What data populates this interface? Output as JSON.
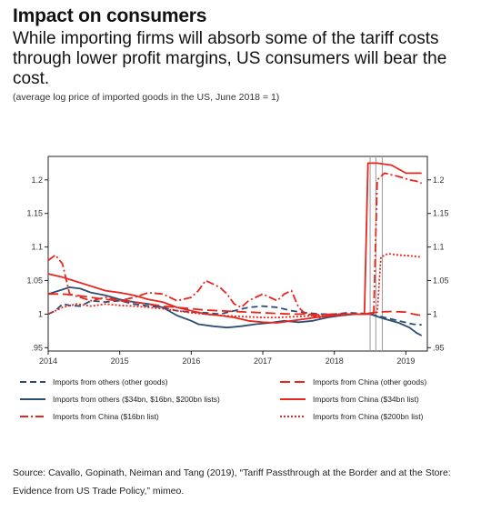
{
  "header": {
    "title": "Impact on consumers",
    "subtitle": "While importing firms will absorb some of the tariff costs through lower profit margins, US consumers will bear the cost.",
    "note": "(average log price of imported goods in the US, June 2018 = 1)"
  },
  "source": "Source: Cavallo, Gopinath, Neiman and Tang (2019), “Tariff Passthrough at the Border and at the Store: Evidence from US Trade Policy,” mimeo.",
  "colors": {
    "navy": "#2e4d73",
    "red": "#e8261e"
  },
  "chart_data": {
    "type": "line",
    "xlim": [
      2014.0,
      2019.3
    ],
    "ylim": [
      0.945,
      1.235
    ],
    "x_ticks": [
      {
        "value": 2014,
        "label": "2014"
      },
      {
        "value": 2015,
        "label": "2015"
      },
      {
        "value": 2016,
        "label": "2016"
      },
      {
        "value": 2017,
        "label": "2017"
      },
      {
        "value": 2018,
        "label": "2018"
      },
      {
        "value": 2019,
        "label": "2019"
      }
    ],
    "y_ticks": [
      {
        "value": 0.95,
        "label": ".95"
      },
      {
        "value": 1.0,
        "label": "1"
      },
      {
        "value": 1.05,
        "label": "1.05"
      },
      {
        "value": 1.1,
        "label": "1.1"
      },
      {
        "value": 1.15,
        "label": "1.15"
      },
      {
        "value": 1.2,
        "label": "1.2"
      }
    ],
    "grid": false,
    "vertical_markers": [
      2018.5,
      2018.58,
      2018.67
    ],
    "legend_position": "bottom",
    "series": [
      {
        "name": "Imports from others (other goods)",
        "color": "#2e4d73",
        "dash": "7,4",
        "points": [
          [
            2014.0,
            1.0
          ],
          [
            2014.1,
            1.005
          ],
          [
            2014.2,
            1.015
          ],
          [
            2014.3,
            1.013
          ],
          [
            2014.45,
            1.012
          ],
          [
            2014.6,
            1.02
          ],
          [
            2014.8,
            1.018
          ],
          [
            2015.0,
            1.02
          ],
          [
            2015.2,
            1.015
          ],
          [
            2015.4,
            1.012
          ],
          [
            2015.6,
            1.01
          ],
          [
            2015.8,
            1.005
          ],
          [
            2016.0,
            1.003
          ],
          [
            2016.2,
            1.002
          ],
          [
            2016.4,
            1.0
          ],
          [
            2016.6,
            1.005
          ],
          [
            2016.8,
            1.01
          ],
          [
            2017.0,
            1.012
          ],
          [
            2017.2,
            1.01
          ],
          [
            2017.4,
            1.005
          ],
          [
            2017.6,
            1.002
          ],
          [
            2017.8,
            1.0
          ],
          [
            2018.0,
            1.0
          ],
          [
            2018.2,
            1.002
          ],
          [
            2018.4,
            1.001
          ],
          [
            2018.5,
            1.0
          ],
          [
            2018.7,
            0.995
          ],
          [
            2018.9,
            0.99
          ],
          [
            2019.1,
            0.985
          ],
          [
            2019.22,
            0.984
          ]
        ]
      },
      {
        "name": "Imports from others ($34bn, $16bn, $200bn lists)",
        "color": "#2e4d73",
        "dash": "",
        "points": [
          [
            2014.0,
            1.03
          ],
          [
            2014.15,
            1.035
          ],
          [
            2014.3,
            1.04
          ],
          [
            2014.45,
            1.038
          ],
          [
            2014.6,
            1.032
          ],
          [
            2014.8,
            1.028
          ],
          [
            2015.0,
            1.022
          ],
          [
            2015.2,
            1.018
          ],
          [
            2015.4,
            1.015
          ],
          [
            2015.6,
            1.01
          ],
          [
            2015.8,
            0.998
          ],
          [
            2016.0,
            0.99
          ],
          [
            2016.1,
            0.985
          ],
          [
            2016.3,
            0.982
          ],
          [
            2016.5,
            0.98
          ],
          [
            2016.7,
            0.982
          ],
          [
            2016.9,
            0.985
          ],
          [
            2017.1,
            0.987
          ],
          [
            2017.3,
            0.99
          ],
          [
            2017.5,
            0.988
          ],
          [
            2017.7,
            0.99
          ],
          [
            2017.9,
            0.995
          ],
          [
            2018.1,
            0.998
          ],
          [
            2018.3,
            1.0
          ],
          [
            2018.5,
            1.0
          ],
          [
            2018.7,
            0.993
          ],
          [
            2018.9,
            0.987
          ],
          [
            2019.05,
            0.98
          ],
          [
            2019.15,
            0.972
          ],
          [
            2019.22,
            0.968
          ]
        ]
      },
      {
        "name": "Imports from China ($16bn list)",
        "color": "#e8261e",
        "dash": "9,3,2,3",
        "points": [
          [
            2014.0,
            1.08
          ],
          [
            2014.1,
            1.088
          ],
          [
            2014.2,
            1.075
          ],
          [
            2014.3,
            1.03
          ],
          [
            2014.45,
            1.025
          ],
          [
            2014.6,
            1.02
          ],
          [
            2014.8,
            1.025
          ],
          [
            2015.0,
            1.02
          ],
          [
            2015.2,
            1.025
          ],
          [
            2015.4,
            1.032
          ],
          [
            2015.6,
            1.03
          ],
          [
            2015.8,
            1.02
          ],
          [
            2016.0,
            1.025
          ],
          [
            2016.1,
            1.035
          ],
          [
            2016.2,
            1.05
          ],
          [
            2016.3,
            1.045
          ],
          [
            2016.4,
            1.04
          ],
          [
            2016.5,
            1.03
          ],
          [
            2016.6,
            1.015
          ],
          [
            2016.7,
            1.01
          ],
          [
            2016.8,
            1.02
          ],
          [
            2016.9,
            1.025
          ],
          [
            2017.0,
            1.03
          ],
          [
            2017.1,
            1.025
          ],
          [
            2017.2,
            1.02
          ],
          [
            2017.3,
            1.03
          ],
          [
            2017.4,
            1.035
          ],
          [
            2017.5,
            1.01
          ],
          [
            2017.6,
            1.0
          ],
          [
            2017.8,
            0.995
          ],
          [
            2018.0,
            0.998
          ],
          [
            2018.2,
            1.0
          ],
          [
            2018.4,
            1.0
          ],
          [
            2018.55,
            1.0
          ],
          [
            2018.6,
            1.2
          ],
          [
            2018.7,
            1.21
          ],
          [
            2018.9,
            1.205
          ],
          [
            2019.05,
            1.2
          ],
          [
            2019.15,
            1.198
          ],
          [
            2019.22,
            1.195
          ]
        ]
      },
      {
        "name": "Imports from China (other goods)",
        "color": "#e8261e",
        "dash": "11,5",
        "points": [
          [
            2014.0,
            1.03
          ],
          [
            2014.2,
            1.03
          ],
          [
            2014.4,
            1.028
          ],
          [
            2014.6,
            1.025
          ],
          [
            2014.8,
            1.022
          ],
          [
            2015.0,
            1.02
          ],
          [
            2015.2,
            1.018
          ],
          [
            2015.4,
            1.015
          ],
          [
            2015.6,
            1.012
          ],
          [
            2015.8,
            1.01
          ],
          [
            2016.0,
            1.008
          ],
          [
            2016.2,
            1.006
          ],
          [
            2016.4,
            1.005
          ],
          [
            2016.6,
            1.004
          ],
          [
            2016.8,
            1.003
          ],
          [
            2017.0,
            1.002
          ],
          [
            2017.2,
            1.001
          ],
          [
            2017.4,
            1.0
          ],
          [
            2017.6,
            1.0
          ],
          [
            2017.8,
            0.999
          ],
          [
            2018.0,
            1.0
          ],
          [
            2018.2,
            1.0
          ],
          [
            2018.4,
            1.0
          ],
          [
            2018.6,
            1.003
          ],
          [
            2018.8,
            1.004
          ],
          [
            2019.0,
            1.003
          ],
          [
            2019.1,
            1.0
          ],
          [
            2019.22,
            0.998
          ]
        ]
      },
      {
        "name": "Imports from China ($34bn list)",
        "color": "#e8261e",
        "dash": "",
        "points": [
          [
            2014.0,
            1.06
          ],
          [
            2014.2,
            1.055
          ],
          [
            2014.35,
            1.05
          ],
          [
            2014.5,
            1.045
          ],
          [
            2014.65,
            1.04
          ],
          [
            2014.8,
            1.035
          ],
          [
            2015.0,
            1.032
          ],
          [
            2015.2,
            1.028
          ],
          [
            2015.4,
            1.022
          ],
          [
            2015.6,
            1.018
          ],
          [
            2015.8,
            1.01
          ],
          [
            2016.0,
            1.005
          ],
          [
            2016.2,
            1.0
          ],
          [
            2016.4,
            0.998
          ],
          [
            2016.6,
            0.995
          ],
          [
            2016.8,
            0.99
          ],
          [
            2017.0,
            0.988
          ],
          [
            2017.2,
            0.987
          ],
          [
            2017.4,
            0.99
          ],
          [
            2017.6,
            0.993
          ],
          [
            2017.8,
            0.996
          ],
          [
            2018.0,
            0.998
          ],
          [
            2018.2,
            1.0
          ],
          [
            2018.42,
            1.0
          ],
          [
            2018.47,
            1.225
          ],
          [
            2018.6,
            1.225
          ],
          [
            2018.8,
            1.222
          ],
          [
            2019.0,
            1.21
          ],
          [
            2019.1,
            1.21
          ],
          [
            2019.22,
            1.21
          ]
        ]
      },
      {
        "name": "Imports from China ($200bn list)",
        "color": "#e8261e",
        "dash": "2,2",
        "points": [
          [
            2014.0,
            1.0
          ],
          [
            2014.2,
            1.01
          ],
          [
            2014.4,
            1.015
          ],
          [
            2014.6,
            1.012
          ],
          [
            2014.8,
            1.015
          ],
          [
            2015.0,
            1.013
          ],
          [
            2015.2,
            1.012
          ],
          [
            2015.4,
            1.01
          ],
          [
            2015.6,
            1.008
          ],
          [
            2015.8,
            1.005
          ],
          [
            2016.0,
            1.002
          ],
          [
            2016.2,
            1.0
          ],
          [
            2016.4,
            0.998
          ],
          [
            2016.6,
            0.997
          ],
          [
            2016.8,
            0.996
          ],
          [
            2017.0,
            0.995
          ],
          [
            2017.2,
            0.995
          ],
          [
            2017.4,
            0.996
          ],
          [
            2017.6,
            0.997
          ],
          [
            2017.8,
            0.998
          ],
          [
            2018.0,
            0.999
          ],
          [
            2018.2,
            1.0
          ],
          [
            2018.5,
            1.0
          ],
          [
            2018.6,
            1.003
          ],
          [
            2018.65,
            1.085
          ],
          [
            2018.75,
            1.09
          ],
          [
            2018.9,
            1.088
          ],
          [
            2019.05,
            1.087
          ],
          [
            2019.22,
            1.085
          ]
        ]
      }
    ]
  }
}
